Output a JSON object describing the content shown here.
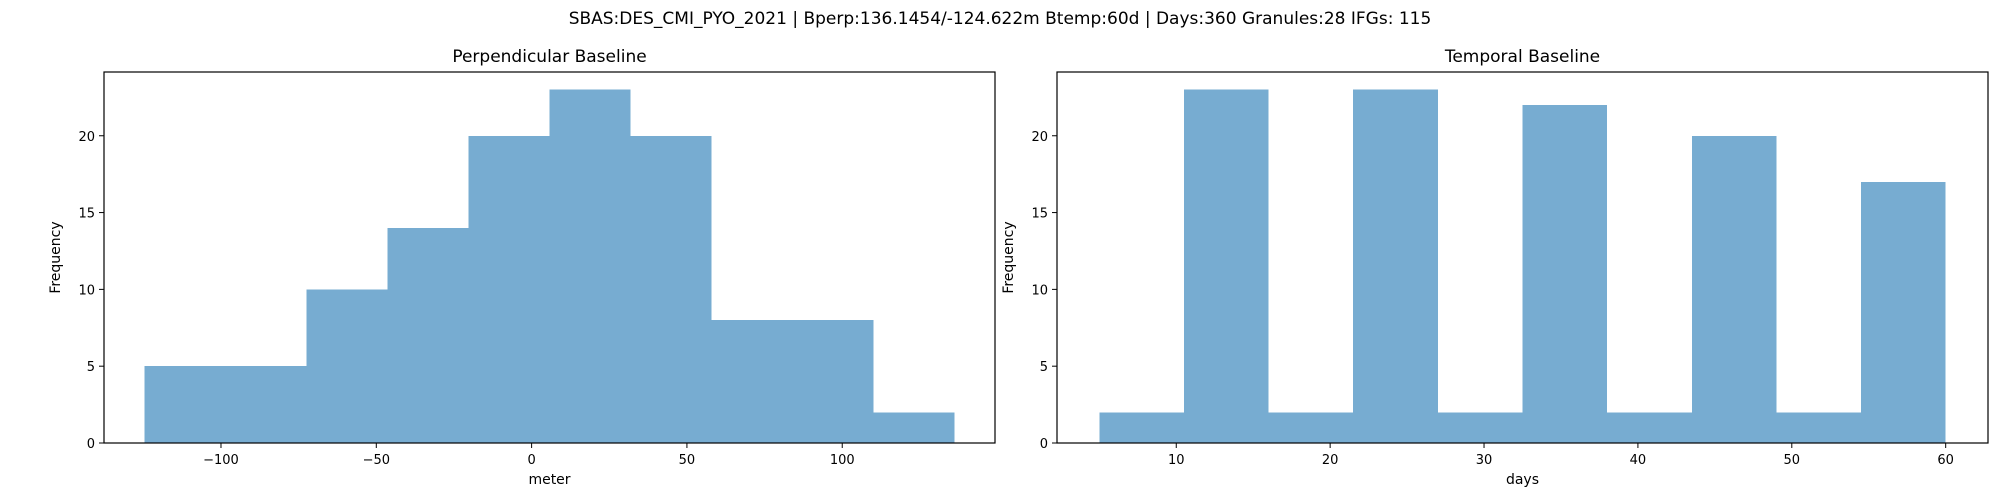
{
  "figure_title": "SBAS:DES_CMI_PYO_2021 | Bperp:136.1454/-124.622m Btemp:60d | Days:360 Granules:28 IFGs: 115",
  "bar_color": "#77acd1",
  "chart_data": [
    {
      "type": "bar",
      "title": "Perpendicular Baseline",
      "xlabel": "meter",
      "ylabel": "Frequency",
      "bin_edges": [
        -124.622,
        -98.545,
        -72.468,
        -46.392,
        -20.315,
        5.762,
        31.838,
        57.915,
        83.991,
        110.068,
        136.145
      ],
      "values": [
        5,
        5,
        10,
        14,
        20,
        23,
        20,
        8,
        8,
        2
      ],
      "xlim": [
        -137.66,
        149.18
      ],
      "ylim": [
        0,
        24.15
      ],
      "xticks": [
        -100,
        -50,
        0,
        50,
        100
      ],
      "xtick_labels": [
        "−100",
        "−50",
        "0",
        "50",
        "100"
      ],
      "yticks": [
        0,
        5,
        10,
        15,
        20
      ],
      "ytick_labels": [
        "0",
        "5",
        "10",
        "15",
        "20"
      ]
    },
    {
      "type": "bar",
      "title": "Temporal Baseline",
      "xlabel": "days",
      "ylabel": "Frequency",
      "bin_edges": [
        5,
        10.5,
        16,
        21.5,
        27,
        32.5,
        38,
        43.5,
        49,
        54.5,
        60
      ],
      "values": [
        2,
        23,
        2,
        23,
        2,
        22,
        2,
        20,
        2,
        17
      ],
      "xlim": [
        2.25,
        62.75
      ],
      "ylim": [
        0,
        24.15
      ],
      "xticks": [
        10,
        20,
        30,
        40,
        50,
        60
      ],
      "xtick_labels": [
        "10",
        "20",
        "30",
        "40",
        "50",
        "60"
      ],
      "yticks": [
        0,
        5,
        10,
        15,
        20
      ],
      "ytick_labels": [
        "0",
        "5",
        "10",
        "15",
        "20"
      ]
    }
  ]
}
